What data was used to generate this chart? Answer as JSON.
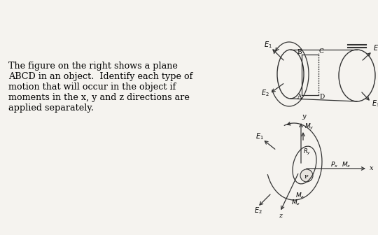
{
  "background_color": "#f5f3ef",
  "text_lines": [
    "The figure on the right shows a plane",
    "ABCD in an object.  Identify each type of",
    "motion that will occur in the object if",
    "moments in the x, y and z directions are",
    "applied separately."
  ],
  "text_fontsize": 9.2,
  "fig_width": 5.4,
  "fig_height": 3.36
}
